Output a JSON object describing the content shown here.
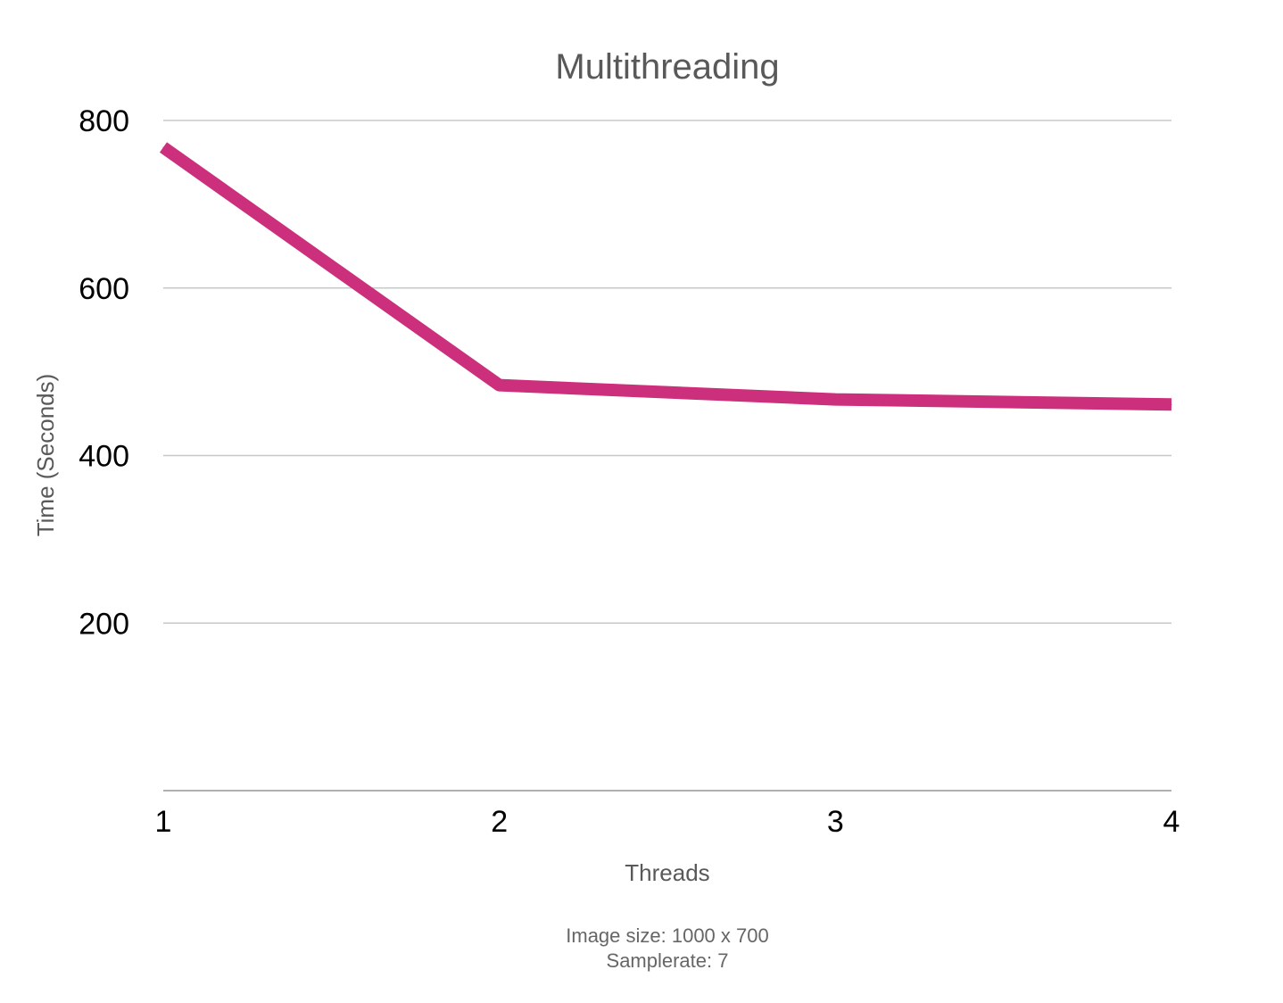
{
  "chart_data": {
    "type": "line",
    "title": "Multithreading",
    "xlabel": "Threads",
    "ylabel": "Time (Seconds)",
    "x": [
      1,
      2,
      3,
      4
    ],
    "x_tick_labels": [
      "1",
      "2",
      "3",
      "4"
    ],
    "y_tick_values": [
      200,
      400,
      600,
      800
    ],
    "y_tick_labels": [
      "200",
      "400",
      "600",
      "800"
    ],
    "ylim": [
      0,
      800
    ],
    "xlim": [
      1,
      4
    ],
    "grid": true,
    "legend": "none",
    "series": [
      {
        "values": [
          768,
          484,
          467,
          461
        ],
        "color": "#cc2f7c"
      }
    ]
  },
  "notes": {
    "line1": "Image size: 1000 x 700",
    "line2": "Samplerate: 7"
  }
}
